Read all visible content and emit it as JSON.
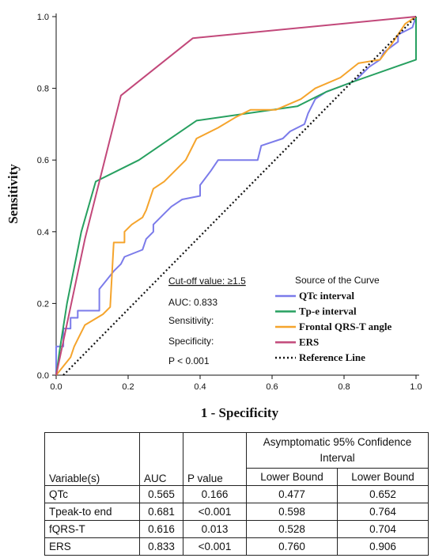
{
  "chart_data": {
    "type": "line",
    "xlabel": "1 - Specificity",
    "ylabel": "Sensitivity",
    "xlim": [
      0,
      1
    ],
    "ylim": [
      0,
      1
    ],
    "x_ticks": [
      "0.0",
      "0.2",
      "0.4",
      "0.6",
      "0.8",
      "1.0"
    ],
    "y_ticks": [
      "0.0",
      "0.2",
      "0.4",
      "0.6",
      "0.8",
      "1.0"
    ],
    "grid": false,
    "legend_title": "Source of the Curve",
    "legend_position": "bottom-right",
    "series": [
      {
        "name": "QTc interval",
        "color": "#7b7bea",
        "points": [
          [
            0,
            0
          ],
          [
            0,
            0.08
          ],
          [
            0.02,
            0.08
          ],
          [
            0.02,
            0.13
          ],
          [
            0.04,
            0.13
          ],
          [
            0.04,
            0.16
          ],
          [
            0.06,
            0.16
          ],
          [
            0.06,
            0.18
          ],
          [
            0.12,
            0.18
          ],
          [
            0.12,
            0.24
          ],
          [
            0.16,
            0.29
          ],
          [
            0.18,
            0.31
          ],
          [
            0.19,
            0.33
          ],
          [
            0.24,
            0.35
          ],
          [
            0.25,
            0.38
          ],
          [
            0.27,
            0.4
          ],
          [
            0.27,
            0.42
          ],
          [
            0.3,
            0.45
          ],
          [
            0.32,
            0.47
          ],
          [
            0.35,
            0.49
          ],
          [
            0.4,
            0.5
          ],
          [
            0.4,
            0.53
          ],
          [
            0.43,
            0.57
          ],
          [
            0.45,
            0.6
          ],
          [
            0.56,
            0.6
          ],
          [
            0.57,
            0.64
          ],
          [
            0.63,
            0.66
          ],
          [
            0.65,
            0.68
          ],
          [
            0.69,
            0.7
          ],
          [
            0.7,
            0.73
          ],
          [
            0.72,
            0.77
          ],
          [
            0.75,
            0.79
          ],
          [
            0.83,
            0.82
          ],
          [
            0.87,
            0.86
          ],
          [
            0.9,
            0.88
          ],
          [
            0.91,
            0.9
          ],
          [
            0.95,
            0.93
          ],
          [
            0.95,
            0.95
          ],
          [
            0.99,
            0.97
          ],
          [
            1.0,
            1.0
          ]
        ]
      },
      {
        "name": "Tp-e interval",
        "color": "#27a060",
        "points": [
          [
            0,
            0
          ],
          [
            0.01,
            0.07
          ],
          [
            0.03,
            0.2
          ],
          [
            0.06,
            0.35
          ],
          [
            0.07,
            0.4
          ],
          [
            0.11,
            0.54
          ],
          [
            0.23,
            0.6
          ],
          [
            0.39,
            0.71
          ],
          [
            0.67,
            0.75
          ],
          [
            0.75,
            0.79
          ],
          [
            0.83,
            0.82
          ],
          [
            1.0,
            0.88
          ],
          [
            1.0,
            1.0
          ]
        ]
      },
      {
        "name": "Frontal QRS-T angle",
        "color": "#f5a42c",
        "points": [
          [
            0,
            0
          ],
          [
            0.04,
            0.05
          ],
          [
            0.05,
            0.08
          ],
          [
            0.06,
            0.1
          ],
          [
            0.08,
            0.14
          ],
          [
            0.13,
            0.17
          ],
          [
            0.15,
            0.19
          ],
          [
            0.16,
            0.37
          ],
          [
            0.19,
            0.37
          ],
          [
            0.19,
            0.4
          ],
          [
            0.21,
            0.42
          ],
          [
            0.24,
            0.44
          ],
          [
            0.25,
            0.46
          ],
          [
            0.27,
            0.52
          ],
          [
            0.3,
            0.54
          ],
          [
            0.33,
            0.57
          ],
          [
            0.36,
            0.6
          ],
          [
            0.39,
            0.66
          ],
          [
            0.45,
            0.69
          ],
          [
            0.5,
            0.72
          ],
          [
            0.54,
            0.74
          ],
          [
            0.61,
            0.74
          ],
          [
            0.68,
            0.77
          ],
          [
            0.72,
            0.8
          ],
          [
            0.79,
            0.83
          ],
          [
            0.84,
            0.87
          ],
          [
            0.9,
            0.88
          ],
          [
            0.93,
            0.92
          ],
          [
            0.97,
            0.98
          ],
          [
            1.0,
            1.0
          ]
        ]
      },
      {
        "name": "ERS",
        "color": "#c2487a",
        "points": [
          [
            0,
            0
          ],
          [
            0.08,
            0.38
          ],
          [
            0.18,
            0.78
          ],
          [
            0.38,
            0.94
          ],
          [
            1.0,
            1.0
          ]
        ]
      },
      {
        "name": "Reference Line",
        "color": "#111111",
        "dashed": true,
        "points": [
          [
            0.02,
            0
          ],
          [
            1.0,
            1.0
          ]
        ]
      }
    ]
  },
  "annotations": {
    "cutoff": "Cut-off value: ≥1.5",
    "auc": "AUC: 0.833",
    "sensitivity": "Sensitivity:",
    "specificity": "Specificity:",
    "p_value": "P < 0.001"
  },
  "table": {
    "ci_header": "Asymptomatic 95% Confidence Interval",
    "columns": [
      "Variable(s)",
      "AUC",
      "P value",
      "Lower Bound",
      "Lower Bound"
    ],
    "rows": [
      [
        "QTc",
        "0.565",
        "0.166",
        "0.477",
        "0.652"
      ],
      [
        "Tpeak-to end",
        "0.681",
        "<0.001",
        "0.598",
        "0.764"
      ],
      [
        "fQRS-T",
        "0.616",
        "0.013",
        "0.528",
        "0.704"
      ],
      [
        "ERS",
        "0.833",
        "<0.001",
        "0.760",
        "0.906"
      ]
    ]
  }
}
